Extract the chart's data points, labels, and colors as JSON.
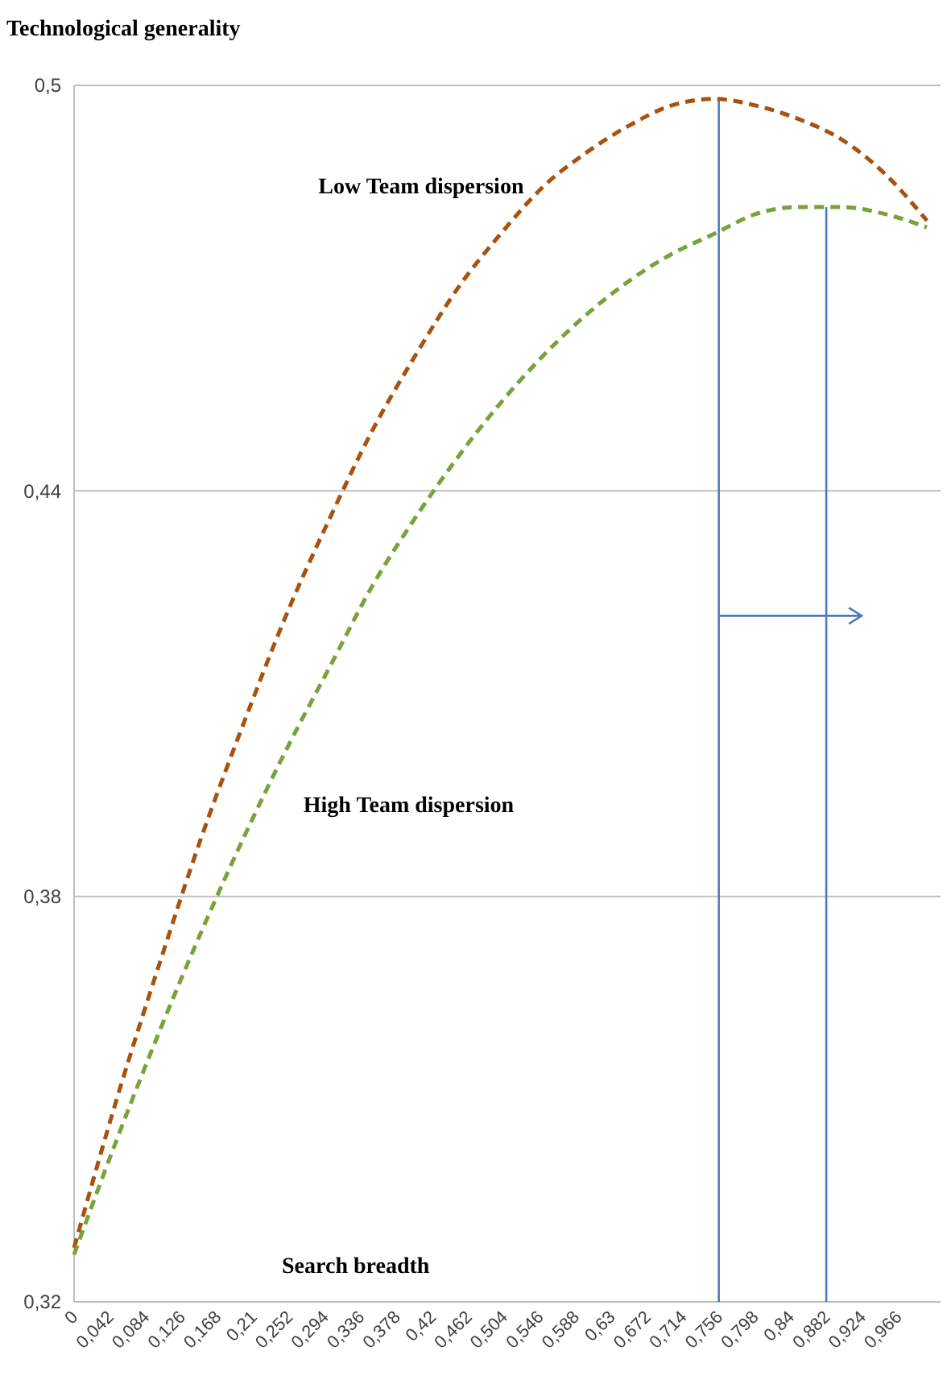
{
  "chart_data": {
    "type": "line",
    "ylabel": "Technological generality",
    "xlabel": "Search breadth",
    "x": [
      0,
      0.05,
      0.1,
      0.15,
      0.2,
      0.25,
      0.3,
      0.35,
      0.4,
      0.45,
      0.5,
      0.55,
      0.6,
      0.65,
      0.7,
      0.75,
      0.8,
      0.85,
      0.9,
      0.95,
      1.0
    ],
    "series": [
      {
        "name": "Low Team dispersion",
        "color": "#a8520f",
        "values": [
          0.328,
          0.35,
          0.37,
          0.389,
          0.406,
          0.422,
          0.436,
          0.449,
          0.46,
          0.47,
          0.478,
          0.485,
          0.49,
          0.494,
          0.497,
          0.498,
          0.497,
          0.495,
          0.492,
          0.487,
          0.48
        ]
      },
      {
        "name": "High Team dispersion",
        "color": "#77a33a",
        "values": [
          0.327,
          0.344,
          0.36,
          0.375,
          0.389,
          0.402,
          0.414,
          0.426,
          0.436,
          0.445,
          0.453,
          0.46,
          0.466,
          0.471,
          0.475,
          0.478,
          0.481,
          0.482,
          0.482,
          0.481,
          0.479
        ]
      }
    ],
    "line_style": "dashed",
    "marker": "none",
    "grid": "y",
    "xlim": [
      0,
      1.016
    ],
    "ylim": [
      0.32,
      0.5
    ],
    "yticks": [
      {
        "value": 0.32,
        "label": "0,32"
      },
      {
        "value": 0.38,
        "label": "0,38"
      },
      {
        "value": 0.44,
        "label": "0,44"
      },
      {
        "value": 0.5,
        "label": "0,5"
      }
    ],
    "xticks": [
      0,
      {
        "value": 0.042,
        "label": "0,042"
      },
      {
        "value": 0.084,
        "label": "0,084"
      },
      {
        "value": 0.126,
        "label": "0,126"
      },
      {
        "value": 0.168,
        "label": "0,168"
      },
      {
        "value": 0.21,
        "label": "0,21"
      },
      {
        "value": 0.252,
        "label": "0,252"
      },
      {
        "value": 0.294,
        "label": "0,294"
      },
      {
        "value": 0.336,
        "label": "0,336"
      },
      {
        "value": 0.378,
        "label": "0,378"
      },
      {
        "value": 0.42,
        "label": "0,42"
      },
      {
        "value": 0.462,
        "label": "0,462"
      },
      {
        "value": 0.504,
        "label": "0,504"
      },
      {
        "value": 0.546,
        "label": "0,546"
      },
      {
        "value": 0.588,
        "label": "0,588"
      },
      {
        "value": 0.63,
        "label": "0,63"
      },
      {
        "value": 0.672,
        "label": "0,672"
      },
      {
        "value": 0.714,
        "label": "0,714"
      },
      {
        "value": 0.756,
        "label": "0,756"
      },
      {
        "value": 0.798,
        "label": "0,798"
      },
      {
        "value": 0.84,
        "label": "0,84"
      },
      {
        "value": 0.882,
        "label": "0,882"
      },
      {
        "value": 0.924,
        "label": "0,924"
      },
      {
        "value": 0.966,
        "label": "0,966"
      }
    ],
    "ref_lines": [
      {
        "axis": "x",
        "value": 0.756,
        "color": "#4a7ebb"
      },
      {
        "axis": "x",
        "value": 0.882,
        "color": "#4a7ebb"
      }
    ]
  }
}
